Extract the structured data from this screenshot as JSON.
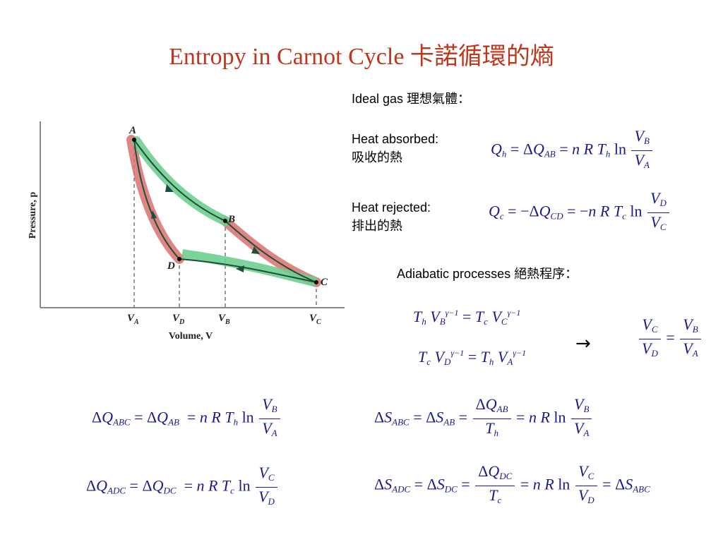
{
  "title": "Entropy in Carnot Cycle  卡諾循環的熵",
  "labels": {
    "ideal_gas": "Ideal gas  理想氣體：",
    "heat_absorbed_en": "Heat absorbed:",
    "heat_absorbed_zh": "吸收的熱",
    "heat_rejected_en": "Heat rejected:",
    "heat_rejected_zh": "排出的熱",
    "adiabatic": "Adiabatic processes  絕熱程序："
  },
  "diagram": {
    "y_axis_label": "Pressure, p",
    "x_axis_label": "Volume, V",
    "points": [
      "A",
      "B",
      "C",
      "D"
    ],
    "volume_ticks": [
      "VA",
      "VD",
      "VB",
      "VC"
    ]
  },
  "colors": {
    "title": "#c0361b",
    "equation": "#1a1a8c",
    "isotherm_band": "#6fcf8f",
    "adiabat_band": "#d9706e",
    "curve": "#1f4f3a"
  }
}
